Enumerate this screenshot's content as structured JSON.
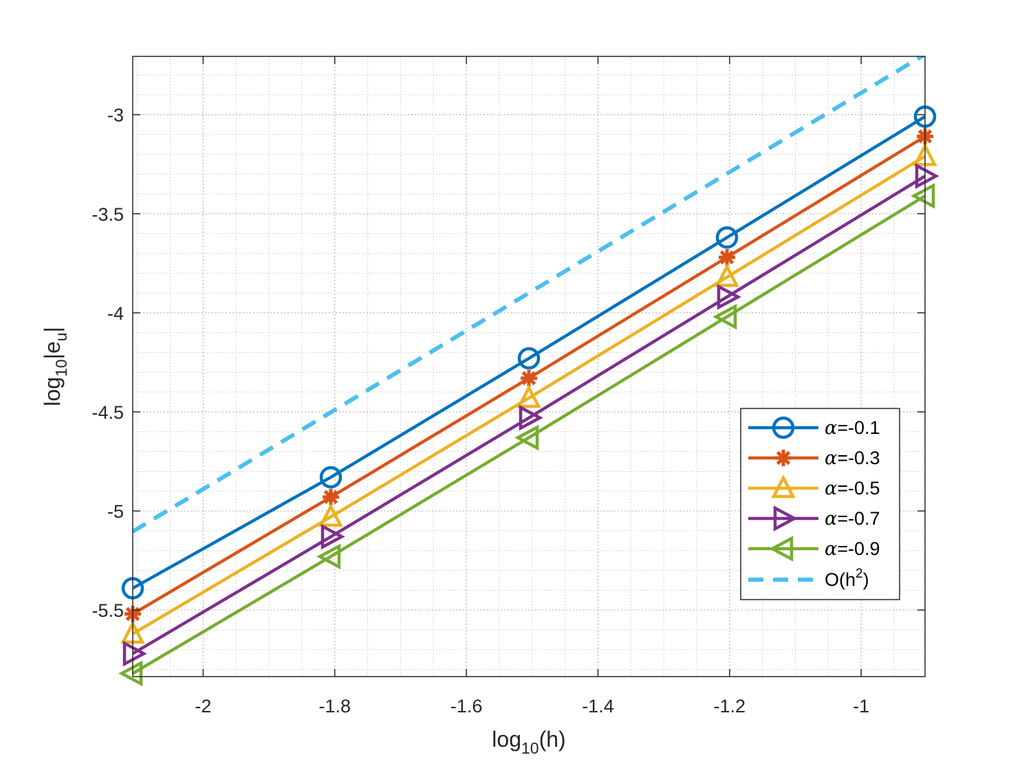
{
  "chart_data": {
    "type": "line",
    "xlabel": {
      "base": "log",
      "sub": "10",
      "rest": "(h)"
    },
    "ylabel": {
      "base": "log",
      "sub": "10",
      "rest_pre": "|e",
      "sub2": "u",
      "rest_post": "|"
    },
    "xlim": [
      -2.107,
      -0.903
    ],
    "ylim": [
      -5.836,
      -2.706
    ],
    "x_ticks": [
      -2,
      -1.8,
      -1.6,
      -1.4,
      -1.2,
      -1
    ],
    "x_tick_labels": [
      "-2",
      "-1.8",
      "-1.6",
      "-1.4",
      "-1.2",
      "-1"
    ],
    "y_ticks": [
      -3,
      -3.5,
      -4,
      -4.5,
      -5,
      -5.5
    ],
    "y_tick_labels": [
      "-3",
      "-3.5",
      "-4",
      "-4.5",
      "-5",
      "-5.5"
    ],
    "grid": true,
    "minor_grid": true,
    "legend_position": "lower-right",
    "x": [
      -2.107,
      -1.806,
      -1.505,
      -1.204,
      -0.903
    ],
    "series": [
      {
        "name": "α=-0.1",
        "alpha": "α",
        "value": "=-0.1",
        "color": "#0072BD",
        "marker": "circle",
        "values": [
          -5.39,
          -4.83,
          -4.23,
          -3.62,
          -3.01
        ]
      },
      {
        "name": "α=-0.3",
        "alpha": "α",
        "value": "=-0.3",
        "color": "#D95319",
        "marker": "asterisk",
        "values": [
          -5.52,
          -4.93,
          -4.33,
          -3.72,
          -3.11
        ]
      },
      {
        "name": "α=-0.5",
        "alpha": "α",
        "value": "=-0.5",
        "color": "#EDB120",
        "marker": "triangle-up",
        "values": [
          -5.62,
          -5.03,
          -4.43,
          -3.82,
          -3.21
        ]
      },
      {
        "name": "α=-0.7",
        "alpha": "α",
        "value": "=-0.7",
        "color": "#7E2F8E",
        "marker": "triangle-right",
        "values": [
          -5.72,
          -5.13,
          -4.53,
          -3.92,
          -3.31
        ]
      },
      {
        "name": "α=-0.9",
        "alpha": "α",
        "value": "=-0.9",
        "color": "#77AC30",
        "marker": "triangle-left",
        "values": [
          -5.82,
          -5.23,
          -4.63,
          -4.02,
          -3.41
        ]
      }
    ],
    "reference": {
      "name": "O(h²)",
      "label_pre": "O(h",
      "label_sup": "2",
      "label_post": ")",
      "color": "#4DBEEE",
      "style": "dashed",
      "x": [
        -2.107,
        -0.903
      ],
      "values": [
        -5.104,
        -2.696
      ]
    }
  }
}
